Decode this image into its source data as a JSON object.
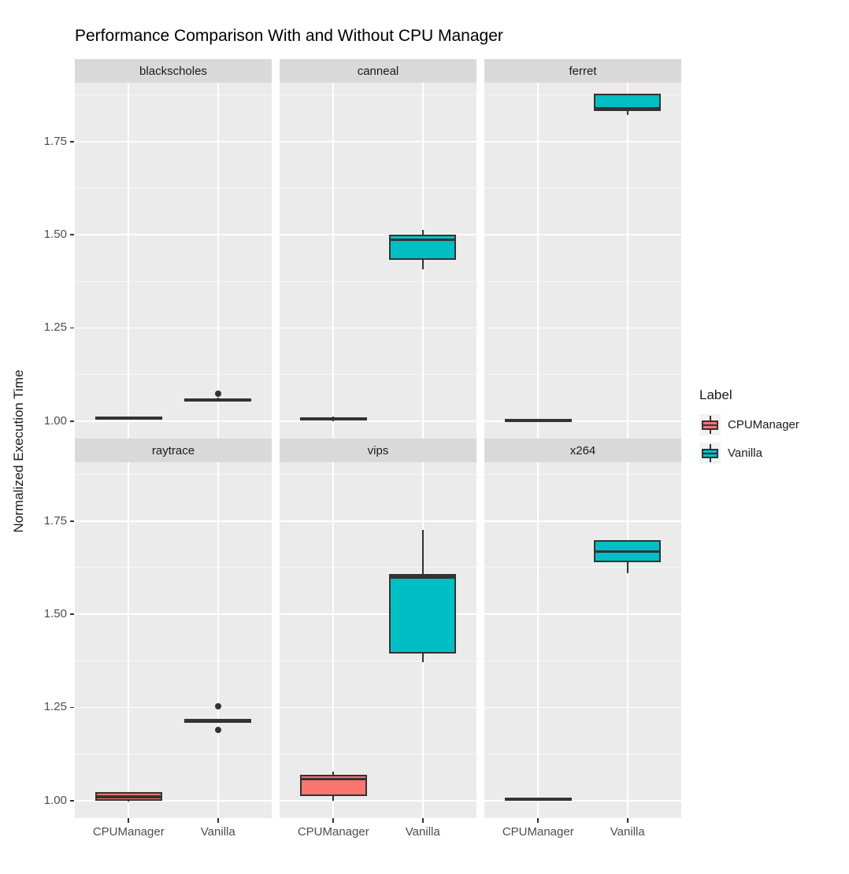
{
  "colors": {
    "cpumanager_fill": "#F8766D",
    "vanilla_fill": "#00BFC4",
    "box_border": "#333333",
    "panel_bg": "#EBEBEB",
    "strip_bg": "#D9D9D9",
    "gridline": "#FFFFFF",
    "axis_text": "#4D4D4D",
    "legend_key_bg": "#F2F2F2"
  },
  "chart_data": {
    "type": "boxplot",
    "title": "Performance Comparison With and Without CPU Manager",
    "ylabel": "Normalized Execution Time",
    "xlabel": "",
    "x_categories": [
      "CPUManager",
      "Vanilla"
    ],
    "y_axis": {
      "ticks": [
        1.0,
        1.25,
        1.5,
        1.75
      ],
      "tick_labels": [
        "1.00",
        "1.25",
        "1.50",
        "1.75"
      ],
      "minor_ticks": [
        1.125,
        1.375,
        1.625,
        1.875
      ],
      "domain": [
        0.953,
        1.908
      ],
      "grid": "on"
    },
    "legend": {
      "title": "Label",
      "position": "right",
      "entries": [
        {
          "label": "CPUManager",
          "color": "#F8766D"
        },
        {
          "label": "Vanilla",
          "color": "#00BFC4"
        }
      ]
    },
    "facet_layout": {
      "rows": 2,
      "cols": 3
    },
    "facets": [
      {
        "name": "blackscholes",
        "groups": [
          {
            "category": "CPUManager",
            "color": "#F8766D",
            "whisker_low": 1.003,
            "q1": 1.004,
            "median": 1.008,
            "q3": 1.012,
            "whisker_high": 1.013,
            "outliers": []
          },
          {
            "category": "Vanilla",
            "color": "#00BFC4",
            "whisker_low": 1.053,
            "q1": 1.055,
            "median": 1.058,
            "q3": 1.061,
            "whisker_high": 1.063,
            "outliers": [
              1.073
            ]
          }
        ]
      },
      {
        "name": "canneal",
        "groups": [
          {
            "category": "CPUManager",
            "color": "#F8766D",
            "whisker_low": 0.999,
            "q1": 1.001,
            "median": 1.006,
            "q3": 1.011,
            "whisker_high": 1.013,
            "outliers": []
          },
          {
            "category": "Vanilla",
            "color": "#00BFC4",
            "whisker_low": 1.408,
            "q1": 1.432,
            "median": 1.487,
            "q3": 1.5,
            "whisker_high": 1.513,
            "outliers": []
          }
        ]
      },
      {
        "name": "ferret",
        "groups": [
          {
            "category": "CPUManager",
            "color": "#F8766D",
            "whisker_low": 0.998,
            "q1": 0.999,
            "median": 1.002,
            "q3": 1.005,
            "whisker_high": 1.006,
            "outliers": []
          },
          {
            "category": "Vanilla",
            "color": "#00BFC4",
            "whisker_low": 1.821,
            "q1": 1.832,
            "median": 1.838,
            "q3": 1.879,
            "whisker_high": 1.879,
            "outliers": []
          }
        ]
      },
      {
        "name": "raytrace",
        "groups": [
          {
            "category": "CPUManager",
            "color": "#F8766D",
            "whisker_low": 0.997,
            "q1": 0.999,
            "median": 1.01,
            "q3": 1.022,
            "whisker_high": 1.023,
            "outliers": []
          },
          {
            "category": "Vanilla",
            "color": "#00BFC4",
            "whisker_low": 1.21,
            "q1": 1.212,
            "median": 1.215,
            "q3": 1.218,
            "whisker_high": 1.22,
            "outliers": [
              1.253,
              1.19
            ]
          }
        ]
      },
      {
        "name": "vips",
        "groups": [
          {
            "category": "CPUManager",
            "color": "#F8766D",
            "whisker_low": 1.0,
            "q1": 1.012,
            "median": 1.058,
            "q3": 1.07,
            "whisker_high": 1.078,
            "outliers": []
          },
          {
            "category": "Vanilla",
            "color": "#00BFC4",
            "whisker_low": 1.371,
            "q1": 1.394,
            "median": 1.6,
            "q3": 1.607,
            "whisker_high": 1.727,
            "outliers": []
          }
        ]
      },
      {
        "name": "x264",
        "groups": [
          {
            "category": "CPUManager",
            "color": "#F8766D",
            "whisker_low": 0.999,
            "q1": 1.001,
            "median": 1.004,
            "q3": 1.007,
            "whisker_high": 1.008,
            "outliers": []
          },
          {
            "category": "Vanilla",
            "color": "#00BFC4",
            "whisker_low": 1.61,
            "q1": 1.64,
            "median": 1.668,
            "q3": 1.699,
            "whisker_high": 1.699,
            "outliers": []
          }
        ]
      }
    ]
  }
}
